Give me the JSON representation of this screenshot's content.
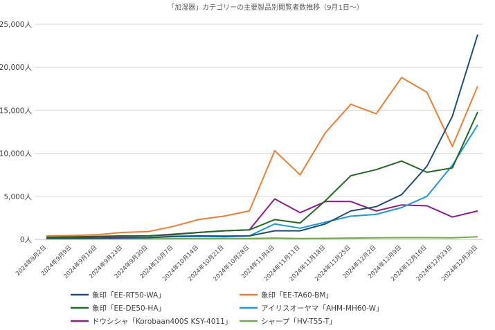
{
  "chart_data": {
    "type": "line",
    "title": "「加湿器」カテゴリーの主要製品別閲覧者数推移（9月1日〜）",
    "xlabel": "",
    "ylabel": "",
    "ylim": [
      0,
      25000
    ],
    "yticks": [
      0,
      5000,
      10000,
      15000,
      20000,
      25000
    ],
    "ytick_labels": [
      "0人",
      "5,000人",
      "10,000人",
      "15,000人",
      "20,000人",
      "25,000人"
    ],
    "categories": [
      "2024年9月2日",
      "2024年9月9日",
      "2024年9月16日",
      "2024年9月23日",
      "2024年9月30日",
      "2024年10月7日",
      "2024年10月14日",
      "2024年10月21日",
      "2024年10月28日",
      "2024年11月4日",
      "2024年11月11日",
      "2024年11月18日",
      "2024年11月25日",
      "2024年12月2日",
      "2024年12月9日",
      "2024年12月16日",
      "2024年12月23日",
      "2024年12月30日"
    ],
    "grid": true,
    "legend_position": "bottom",
    "series": [
      {
        "name": "象印「EE-RT50-WA」",
        "color": "#1f4e79",
        "values": [
          150,
          150,
          150,
          180,
          200,
          350,
          400,
          380,
          400,
          1000,
          1000,
          1800,
          3300,
          3800,
          5200,
          8500,
          14300,
          23800
        ]
      },
      {
        "name": "象印「EE-TA60-BM」",
        "color": "#ed7d31",
        "values": [
          400,
          450,
          550,
          800,
          900,
          1500,
          2300,
          2700,
          3300,
          10300,
          7500,
          12400,
          15700,
          14600,
          18800,
          17100,
          10800,
          17800
        ]
      },
      {
        "name": "象印「EE-DE50-HA」",
        "color": "#1e6b1e",
        "values": [
          250,
          300,
          350,
          400,
          400,
          550,
          800,
          1000,
          1100,
          2300,
          1900,
          4500,
          7400,
          8100,
          9100,
          7800,
          8300,
          14800
        ]
      },
      {
        "name": "アイリスオーヤマ「AHM-MH60-W」",
        "color": "#1a9ad6",
        "values": [
          100,
          100,
          120,
          150,
          200,
          300,
          350,
          300,
          400,
          1800,
          1300,
          2000,
          2700,
          2900,
          3700,
          5000,
          8600,
          13300
        ]
      },
      {
        "name": "ドウシシャ「Korobaan400S KSY-4011」",
        "color": "#8e1b8e",
        "values": [
          200,
          250,
          300,
          350,
          400,
          600,
          800,
          1000,
          1100,
          4700,
          3100,
          4400,
          4400,
          3300,
          4000,
          3900,
          2600,
          3300
        ]
      },
      {
        "name": "シャープ「HV-T55-T」",
        "color": "#70ad47",
        "values": [
          50,
          50,
          50,
          50,
          60,
          80,
          100,
          100,
          100,
          150,
          100,
          120,
          150,
          180,
          200,
          200,
          180,
          300
        ]
      }
    ]
  }
}
